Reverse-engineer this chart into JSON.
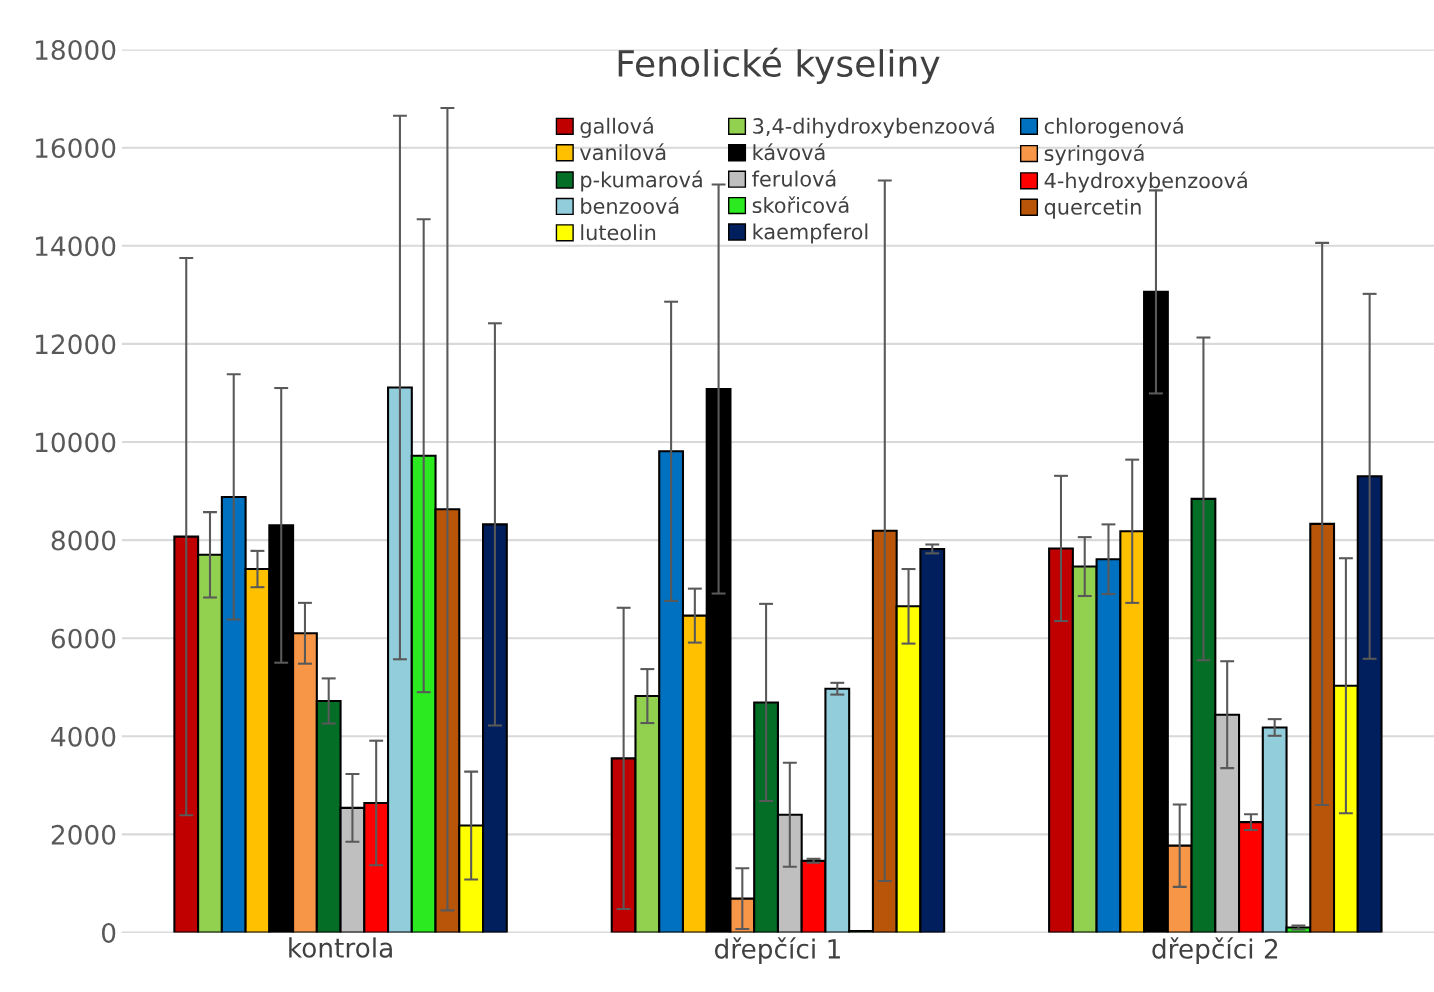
{
  "chart_data": {
    "type": "bar",
    "title": "Fenolické kyseliny",
    "categories": [
      "kontrola",
      "dřepčíci 1",
      "dřepčíci 2"
    ],
    "ylim": [
      0,
      18000
    ],
    "yticks": [
      0,
      2000,
      4000,
      6000,
      8000,
      10000,
      12000,
      14000,
      16000,
      18000
    ],
    "grid": "y",
    "legend": "top",
    "series": [
      {
        "name": "gallová",
        "color": "#c00000",
        "values": [
          8070,
          3550,
          7830
        ],
        "errors": [
          5680,
          3070,
          1480
        ]
      },
      {
        "name": "3,4-dihydroxybenzoová",
        "color": "#92d050",
        "values": [
          7700,
          4820,
          7460
        ],
        "errors": [
          870,
          550,
          600
        ]
      },
      {
        "name": "chlorogenová",
        "color": "#0070c0",
        "values": [
          8880,
          9810,
          7610
        ],
        "errors": [
          2500,
          3050,
          710
        ]
      },
      {
        "name": "vanilová",
        "color": "#ffc000",
        "values": [
          7410,
          6460,
          8180
        ],
        "errors": [
          370,
          550,
          1460
        ]
      },
      {
        "name": "kávová",
        "color": "#000000",
        "values": [
          8300,
          11080,
          13060
        ],
        "errors": [
          2800,
          4170,
          2070
        ]
      },
      {
        "name": "syringová",
        "color": "#f79646",
        "values": [
          6100,
          690,
          1770
        ],
        "errors": [
          620,
          620,
          840
        ]
      },
      {
        "name": "p-kumarová",
        "color": "#046d26",
        "values": [
          4720,
          4690,
          8840
        ],
        "errors": [
          460,
          2010,
          3290
        ]
      },
      {
        "name": "ferulová",
        "color": "#bfbfbf",
        "values": [
          2540,
          2400,
          4440
        ],
        "errors": [
          690,
          1060,
          1090
        ]
      },
      {
        "name": "4-hydroxybenzoová",
        "color": "#ff0000",
        "values": [
          2640,
          1460,
          2250
        ],
        "errors": [
          1270,
          40,
          160
        ]
      },
      {
        "name": "benzoová",
        "color": "#92cddc",
        "values": [
          11110,
          4970,
          4180
        ],
        "errors": [
          5540,
          120,
          170
        ]
      },
      {
        "name": "skořicová",
        "color": "#2bea1f",
        "values": [
          9720,
          30,
          100
        ],
        "errors": [
          4820,
          null,
          40
        ]
      },
      {
        "name": "quercetin",
        "color": "#b85509",
        "values": [
          8630,
          8190,
          8330
        ],
        "errors": [
          8180,
          7140,
          5730
        ]
      },
      {
        "name": "luteolin",
        "color": "#ffff00",
        "values": [
          2180,
          6650,
          5030
        ],
        "errors": [
          1100,
          760,
          2600
        ]
      },
      {
        "name": "kaempferol",
        "color": "#001f5c",
        "values": [
          8320,
          7820,
          9300
        ],
        "errors": [
          4100,
          90,
          3720
        ]
      }
    ]
  }
}
